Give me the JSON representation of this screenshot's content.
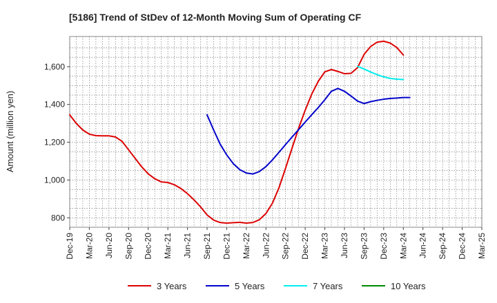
{
  "chart_data": {
    "type": "line",
    "title": "[5186]  Trend of StDev of 12-Month Moving Sum of Operating CF",
    "xlabel": "",
    "ylabel": "Amount (million yen)",
    "ylim": [
      750,
      1760
    ],
    "yticks": [
      800,
      1000,
      1200,
      1400,
      1600
    ],
    "ytick_labels": [
      "800",
      "1,000",
      "1,200",
      "1,400",
      "1,600"
    ],
    "xtick_labels": [
      "Dec-19",
      "Mar-20",
      "Jun-20",
      "Sep-20",
      "Dec-20",
      "Mar-21",
      "Jun-21",
      "Sep-21",
      "Dec-21",
      "Mar-22",
      "Jun-22",
      "Sep-22",
      "Dec-22",
      "Mar-23",
      "Jun-23",
      "Sep-23",
      "Dec-23",
      "Mar-24",
      "Jun-24",
      "Sep-24",
      "Dec-24",
      "Mar-25"
    ],
    "grid": true,
    "legend_position": "bottom",
    "series": [
      {
        "name": "3 Years",
        "color": "#dd0000",
        "start_index": 0,
        "values": [
          1345,
          1300,
          1265,
          1243,
          1235,
          1234,
          1234,
          1228,
          1205,
          1160,
          1115,
          1070,
          1033,
          1007,
          990,
          987,
          975,
          955,
          928,
          895,
          858,
          815,
          788,
          775,
          772,
          774,
          776,
          772,
          775,
          790,
          823,
          878,
          960,
          1063,
          1170,
          1275,
          1370,
          1455,
          1523,
          1573,
          1585,
          1575,
          1563,
          1565,
          1595,
          1665,
          1707,
          1730,
          1735,
          1725,
          1702,
          1662
        ]
      },
      {
        "name": "5 Years",
        "color": "#0000cc",
        "start_index": 21,
        "values": [
          1345,
          1265,
          1190,
          1133,
          1087,
          1055,
          1037,
          1032,
          1045,
          1071,
          1107,
          1147,
          1188,
          1228,
          1267,
          1307,
          1346,
          1384,
          1425,
          1470,
          1485,
          1470,
          1445,
          1418,
          1405,
          1415,
          1422,
          1428,
          1432,
          1434,
          1437,
          1437
        ]
      },
      {
        "name": "7 Years",
        "color": "#00eeee",
        "start_index": 44,
        "values": [
          1602,
          1588,
          1572,
          1558,
          1546,
          1538,
          1534,
          1532
        ]
      },
      {
        "name": "10 Years",
        "color": "#008800",
        "start_index": 0,
        "values": []
      }
    ]
  }
}
